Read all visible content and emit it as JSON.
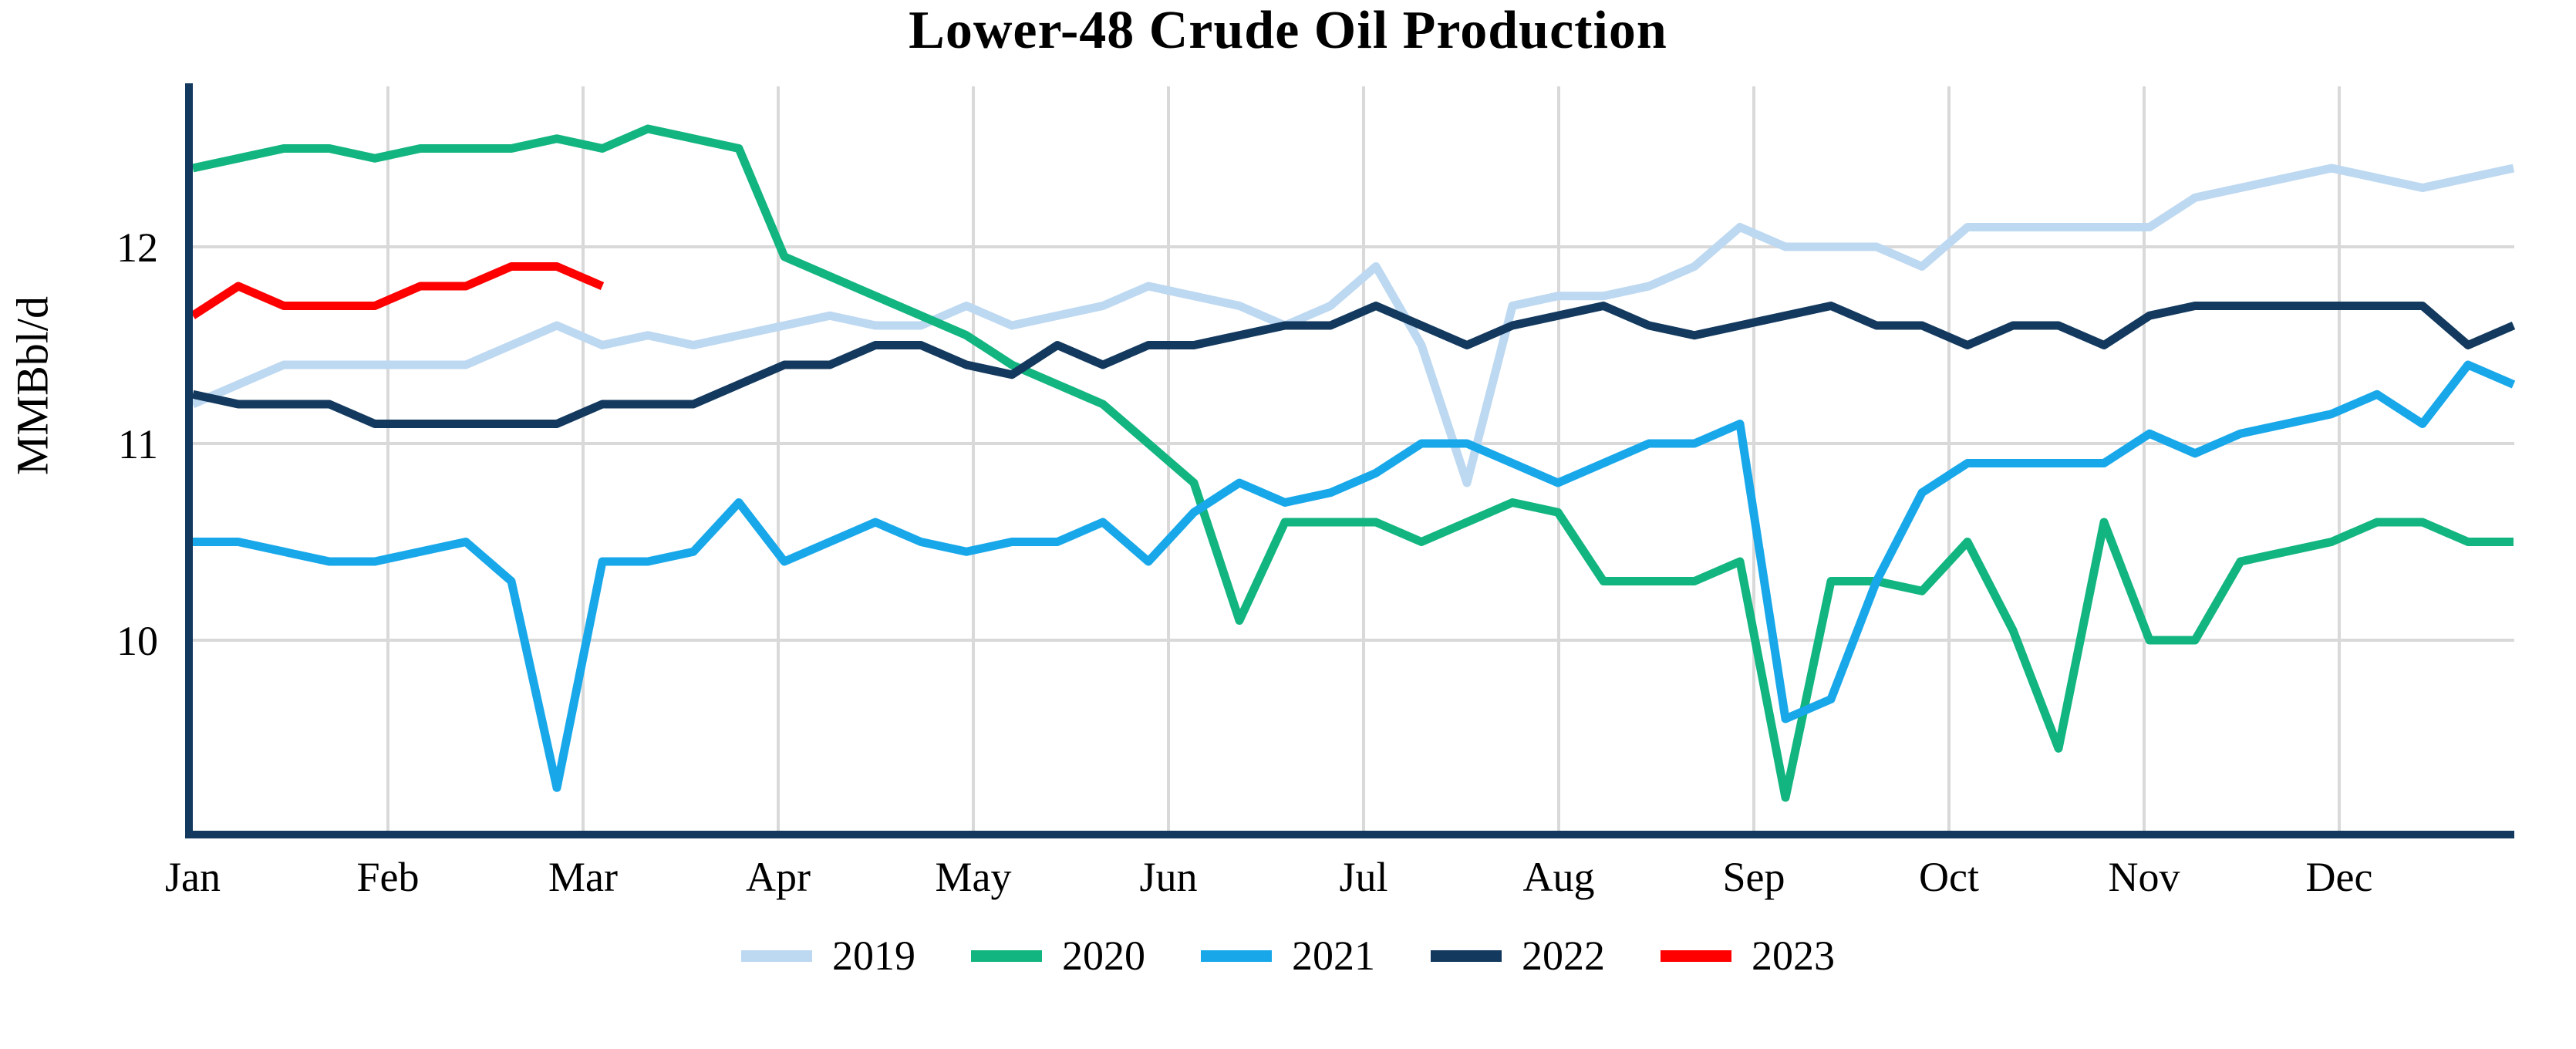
{
  "page": {
    "background": "#FFFFFF"
  },
  "chart_data": {
    "type": "line",
    "title": "Lower-48 Crude Oil Production",
    "xlabel": "",
    "ylabel": "MMBbl/d",
    "x_unit": "weeks",
    "x_tick_labels": [
      "Jan",
      "Feb",
      "Mar",
      "Apr",
      "May",
      "Jun",
      "Jul",
      "Aug",
      "Sep",
      "Oct",
      "Nov",
      "Dec"
    ],
    "y_ticks": [
      10,
      11,
      12
    ],
    "ylim": [
      9.0,
      12.8
    ],
    "grid": true,
    "gridline_color": "#D9D9D9",
    "axis_color": "#13395E",
    "background_color": "#FFFFFF",
    "legend_position": "bottom",
    "series": [
      {
        "name": "2019",
        "color": "#BDD8F1",
        "values": [
          11.2,
          11.3,
          11.4,
          11.4,
          11.4,
          11.4,
          11.4,
          11.5,
          11.6,
          11.5,
          11.55,
          11.5,
          11.55,
          11.6,
          11.65,
          11.6,
          11.6,
          11.7,
          11.6,
          11.65,
          11.7,
          11.8,
          11.75,
          11.7,
          11.6,
          11.7,
          11.9,
          11.5,
          10.8,
          11.7,
          11.75,
          11.75,
          11.8,
          11.9,
          12.1,
          12.0,
          12.0,
          12.0,
          11.9,
          12.1,
          12.1,
          12.1,
          12.1,
          12.1,
          12.25,
          12.3,
          12.35,
          12.4,
          12.35,
          12.3,
          12.35,
          12.4
        ]
      },
      {
        "name": "2020",
        "color": "#12B57F",
        "values": [
          12.4,
          12.45,
          12.5,
          12.5,
          12.45,
          12.5,
          12.5,
          12.5,
          12.55,
          12.5,
          12.6,
          12.55,
          12.5,
          11.95,
          11.85,
          11.75,
          11.65,
          11.55,
          11.4,
          11.3,
          11.2,
          11.0,
          10.8,
          10.1,
          10.6,
          10.6,
          10.6,
          10.5,
          10.6,
          10.7,
          10.65,
          10.3,
          10.3,
          10.3,
          10.4,
          9.2,
          10.3,
          10.3,
          10.25,
          10.5,
          10.05,
          9.45,
          10.6,
          10.0,
          10.0,
          10.4,
          10.45,
          10.5,
          10.6,
          10.6,
          10.5,
          10.5
        ]
      },
      {
        "name": "2021",
        "color": "#18A8EA",
        "values": [
          10.5,
          10.5,
          10.45,
          10.4,
          10.4,
          10.45,
          10.5,
          10.3,
          9.25,
          10.4,
          10.4,
          10.45,
          10.7,
          10.4,
          10.5,
          10.6,
          10.5,
          10.45,
          10.5,
          10.5,
          10.6,
          10.4,
          10.65,
          10.8,
          10.7,
          10.75,
          10.85,
          11.0,
          11.0,
          10.9,
          10.8,
          10.9,
          11.0,
          11.0,
          11.1,
          9.6,
          9.7,
          10.3,
          10.75,
          10.9,
          10.9,
          10.9,
          10.9,
          11.05,
          10.95,
          11.05,
          11.1,
          11.15,
          11.25,
          11.1,
          11.4,
          11.3
        ]
      },
      {
        "name": "2022",
        "color": "#13395E",
        "values": [
          11.25,
          11.2,
          11.2,
          11.2,
          11.1,
          11.1,
          11.1,
          11.1,
          11.1,
          11.2,
          11.2,
          11.2,
          11.3,
          11.4,
          11.4,
          11.5,
          11.5,
          11.4,
          11.35,
          11.5,
          11.4,
          11.5,
          11.5,
          11.55,
          11.6,
          11.6,
          11.7,
          11.6,
          11.5,
          11.6,
          11.65,
          11.7,
          11.6,
          11.55,
          11.6,
          11.65,
          11.7,
          11.6,
          11.6,
          11.5,
          11.6,
          11.6,
          11.5,
          11.65,
          11.7,
          11.7,
          11.7,
          11.7,
          11.7,
          11.7,
          11.5,
          11.6
        ]
      },
      {
        "name": "2023",
        "color": "#FE0000",
        "values": [
          11.65,
          11.8,
          11.7,
          11.7,
          11.7,
          11.8,
          11.8,
          11.9,
          11.9,
          11.8
        ]
      }
    ]
  }
}
